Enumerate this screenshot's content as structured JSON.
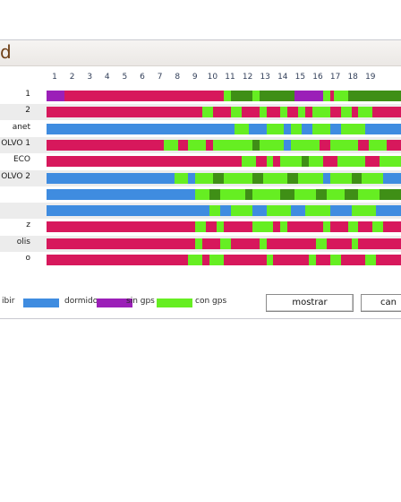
{
  "window": {
    "title": "d"
  },
  "hours": [
    "1",
    "2",
    "3",
    "4",
    "5",
    "6",
    "7",
    "8",
    "9",
    "10",
    "11",
    "12",
    "13",
    "14",
    "15",
    "16",
    "17",
    "18",
    "19"
  ],
  "vehicles": [
    {
      "label": "1",
      "segments": [
        [
          "s",
          0,
          5
        ],
        [
          "t",
          5,
          50
        ],
        [
          "g",
          50,
          52
        ],
        [
          "d",
          52,
          58
        ],
        [
          "g",
          58,
          60
        ],
        [
          "d",
          60,
          70
        ],
        [
          "s",
          70,
          78
        ],
        [
          "g",
          78,
          80
        ],
        [
          "t",
          80,
          81
        ],
        [
          "g",
          81,
          85
        ],
        [
          "d",
          85,
          100
        ]
      ]
    },
    {
      "label": "2",
      "segments": [
        [
          "t",
          0,
          44
        ],
        [
          "g",
          44,
          47
        ],
        [
          "t",
          47,
          52
        ],
        [
          "g",
          52,
          55
        ],
        [
          "t",
          55,
          60
        ],
        [
          "g",
          60,
          62
        ],
        [
          "t",
          62,
          66
        ],
        [
          "g",
          66,
          68
        ],
        [
          "t",
          68,
          71
        ],
        [
          "g",
          71,
          73
        ],
        [
          "t",
          73,
          75
        ],
        [
          "g",
          75,
          80
        ],
        [
          "t",
          80,
          83
        ],
        [
          "g",
          83,
          86
        ],
        [
          "t",
          86,
          88
        ],
        [
          "g",
          88,
          92
        ],
        [
          "t",
          92,
          100
        ]
      ]
    },
    {
      "label": "anet",
      "segments": [
        [
          "b",
          0,
          53
        ],
        [
          "g",
          53,
          57
        ],
        [
          "b",
          57,
          62
        ],
        [
          "g",
          62,
          67
        ],
        [
          "b",
          67,
          69
        ],
        [
          "g",
          69,
          72
        ],
        [
          "b",
          72,
          75
        ],
        [
          "g",
          75,
          80
        ],
        [
          "b",
          80,
          83
        ],
        [
          "g",
          83,
          90
        ],
        [
          "b",
          90,
          100
        ]
      ]
    },
    {
      "label": "OLVO 1",
      "segments": [
        [
          "t",
          0,
          33
        ],
        [
          "g",
          33,
          37
        ],
        [
          "t",
          37,
          40
        ],
        [
          "g",
          40,
          45
        ],
        [
          "t",
          45,
          47
        ],
        [
          "g",
          47,
          58
        ],
        [
          "d",
          58,
          60
        ],
        [
          "g",
          60,
          67
        ],
        [
          "b",
          67,
          69
        ],
        [
          "g",
          69,
          77
        ],
        [
          "t",
          77,
          80
        ],
        [
          "g",
          80,
          88
        ],
        [
          "t",
          88,
          91
        ],
        [
          "g",
          91,
          96
        ],
        [
          "t",
          96,
          100
        ]
      ]
    },
    {
      "label": "ECO",
      "segments": [
        [
          "t",
          0,
          55
        ],
        [
          "g",
          55,
          59
        ],
        [
          "t",
          59,
          62
        ],
        [
          "g",
          62,
          64
        ],
        [
          "t",
          64,
          66
        ],
        [
          "g",
          66,
          72
        ],
        [
          "d",
          72,
          74
        ],
        [
          "g",
          74,
          78
        ],
        [
          "t",
          78,
          82
        ],
        [
          "g",
          82,
          90
        ],
        [
          "t",
          90,
          94
        ],
        [
          "g",
          94,
          100
        ]
      ]
    },
    {
      "label": "OLVO 2",
      "segments": [
        [
          "b",
          0,
          36
        ],
        [
          "g",
          36,
          40
        ],
        [
          "b",
          40,
          42
        ],
        [
          "g",
          42,
          47
        ],
        [
          "d",
          47,
          50
        ],
        [
          "g",
          50,
          58
        ],
        [
          "d",
          58,
          61
        ],
        [
          "g",
          61,
          68
        ],
        [
          "d",
          68,
          71
        ],
        [
          "g",
          71,
          78
        ],
        [
          "b",
          78,
          80
        ],
        [
          "g",
          80,
          86
        ],
        [
          "d",
          86,
          89
        ],
        [
          "g",
          89,
          95
        ],
        [
          "b",
          95,
          100
        ]
      ]
    },
    {
      "label": "",
      "segments": [
        [
          "b",
          0,
          42
        ],
        [
          "g",
          42,
          46
        ],
        [
          "d",
          46,
          49
        ],
        [
          "g",
          49,
          56
        ],
        [
          "d",
          56,
          58
        ],
        [
          "g",
          58,
          66
        ],
        [
          "d",
          66,
          70
        ],
        [
          "g",
          70,
          76
        ],
        [
          "d",
          76,
          79
        ],
        [
          "g",
          79,
          84
        ],
        [
          "d",
          84,
          88
        ],
        [
          "g",
          88,
          94
        ],
        [
          "d",
          94,
          100
        ]
      ]
    },
    {
      "label": "",
      "segments": [
        [
          "b",
          0,
          46
        ],
        [
          "g",
          46,
          49
        ],
        [
          "b",
          49,
          52
        ],
        [
          "g",
          52,
          58
        ],
        [
          "b",
          58,
          62
        ],
        [
          "g",
          62,
          69
        ],
        [
          "b",
          69,
          73
        ],
        [
          "g",
          73,
          80
        ],
        [
          "b",
          80,
          86
        ],
        [
          "g",
          86,
          93
        ],
        [
          "b",
          93,
          100
        ]
      ]
    },
    {
      "label": "z",
      "segments": [
        [
          "t",
          0,
          42
        ],
        [
          "g",
          42,
          45
        ],
        [
          "t",
          45,
          48
        ],
        [
          "g",
          48,
          50
        ],
        [
          "t",
          50,
          58
        ],
        [
          "g",
          58,
          64
        ],
        [
          "t",
          64,
          66
        ],
        [
          "g",
          66,
          68
        ],
        [
          "t",
          68,
          78
        ],
        [
          "g",
          78,
          80
        ],
        [
          "t",
          80,
          85
        ],
        [
          "g",
          85,
          88
        ],
        [
          "t",
          88,
          92
        ],
        [
          "g",
          92,
          95
        ],
        [
          "t",
          95,
          100
        ]
      ]
    },
    {
      "label": "olis",
      "segments": [
        [
          "t",
          0,
          42
        ],
        [
          "g",
          42,
          44
        ],
        [
          "t",
          44,
          49
        ],
        [
          "g",
          49,
          52
        ],
        [
          "t",
          52,
          60
        ],
        [
          "g",
          60,
          62
        ],
        [
          "t",
          62,
          76
        ],
        [
          "g",
          76,
          79
        ],
        [
          "t",
          79,
          86
        ],
        [
          "g",
          86,
          88
        ],
        [
          "t",
          88,
          100
        ]
      ]
    },
    {
      "label": "o",
      "segments": [
        [
          "t",
          0,
          40
        ],
        [
          "g",
          40,
          44
        ],
        [
          "t",
          44,
          46
        ],
        [
          "g",
          46,
          50
        ],
        [
          "t",
          50,
          62
        ],
        [
          "g",
          62,
          64
        ],
        [
          "t",
          64,
          74
        ],
        [
          "g",
          74,
          76
        ],
        [
          "t",
          76,
          80
        ],
        [
          "g",
          80,
          83
        ],
        [
          "t",
          83,
          90
        ],
        [
          "g",
          90,
          93
        ],
        [
          "t",
          93,
          100
        ]
      ]
    }
  ],
  "legend": [
    {
      "key": "t",
      "label": "ibir",
      "color": "#d7185c"
    },
    {
      "key": "b",
      "label": "dormido",
      "color": "#3f8ce0"
    },
    {
      "key": "s",
      "label": "sin gps",
      "color": "#9b1fb8"
    },
    {
      "key": "g",
      "label": "con gps",
      "color": "#66ee22"
    }
  ],
  "extra_colors": {
    "d": "#3f8f16"
  },
  "buttons": {
    "show": "mostrar",
    "cancel": "can"
  }
}
